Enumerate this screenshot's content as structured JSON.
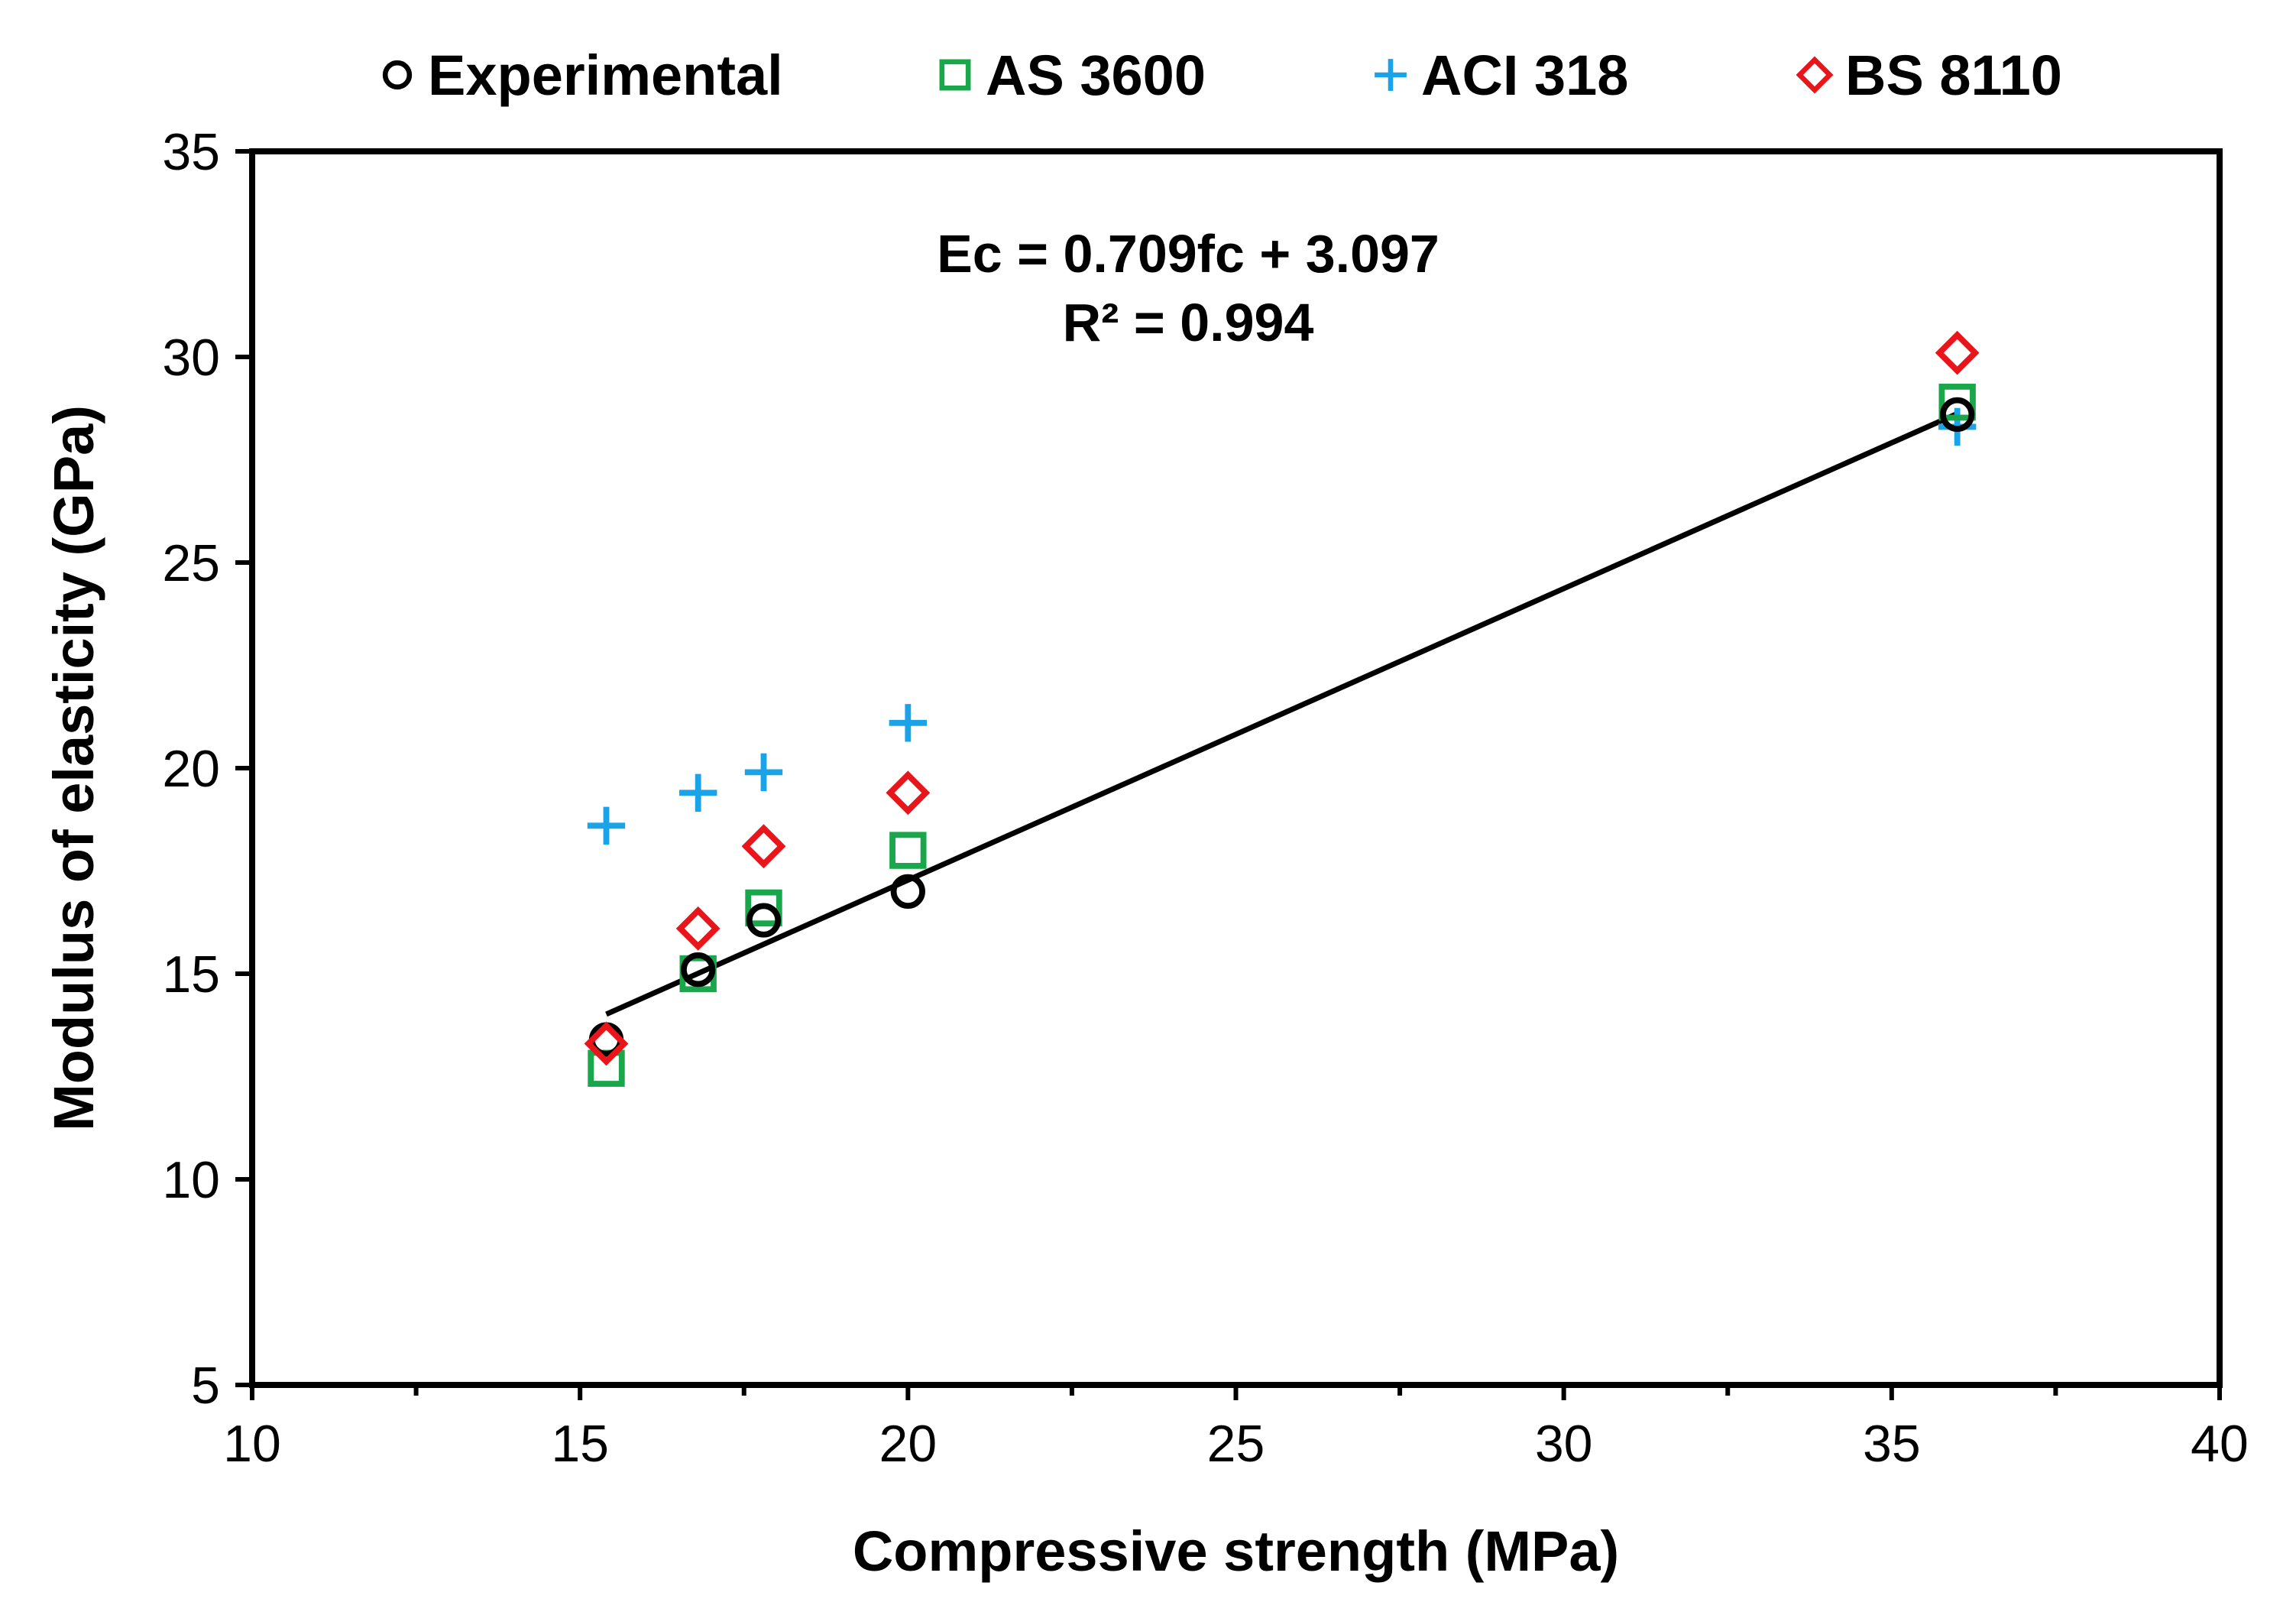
{
  "chart_data": {
    "type": "scatter",
    "xlabel": "Compressive strength (MPa)",
    "ylabel": "Modulus of elasticity (GPa)",
    "xlim": [
      10,
      40
    ],
    "ylim": [
      5,
      35
    ],
    "xticks": [
      10,
      15,
      20,
      25,
      30,
      35,
      40
    ],
    "yticks": [
      5,
      10,
      15,
      20,
      25,
      30,
      35
    ],
    "x_tick_labels": [
      "10",
      "15",
      "20",
      "25",
      "30",
      "35",
      "40"
    ],
    "y_tick_labels": [
      "5",
      "10",
      "15",
      "20",
      "25",
      "30",
      "35"
    ],
    "grid": false,
    "legend_position": "top",
    "series": [
      {
        "name": "Experimental",
        "marker": "circle",
        "color": "#000000",
        "x": [
          15.4,
          16.8,
          17.8,
          20.0,
          36.0
        ],
        "y": [
          13.4,
          15.1,
          16.3,
          17.0,
          28.6
        ]
      },
      {
        "name": "AS 3600",
        "marker": "square",
        "color": "#1aa64a",
        "x": [
          15.4,
          16.8,
          17.8,
          20.0,
          36.0
        ],
        "y": [
          12.7,
          15.0,
          16.6,
          18.0,
          28.9
        ]
      },
      {
        "name": "ACI 318",
        "marker": "plus",
        "color": "#1aa3e8",
        "x": [
          15.4,
          16.8,
          17.8,
          20.0,
          36.0
        ],
        "y": [
          18.6,
          19.4,
          19.9,
          21.1,
          28.3
        ]
      },
      {
        "name": "BS 8110",
        "marker": "diamond",
        "color": "#e8151b",
        "x": [
          15.4,
          16.8,
          17.8,
          20.0,
          36.0
        ],
        "y": [
          13.3,
          16.1,
          18.1,
          19.4,
          30.1
        ]
      }
    ],
    "trendline": {
      "label_line1": "Ec = 0.709fc + 3.097",
      "label_line2": "R² = 0.994",
      "slope": 0.709,
      "intercept": 3.097,
      "x_start": 15.4,
      "x_end": 36.0,
      "color": "#000000"
    }
  }
}
